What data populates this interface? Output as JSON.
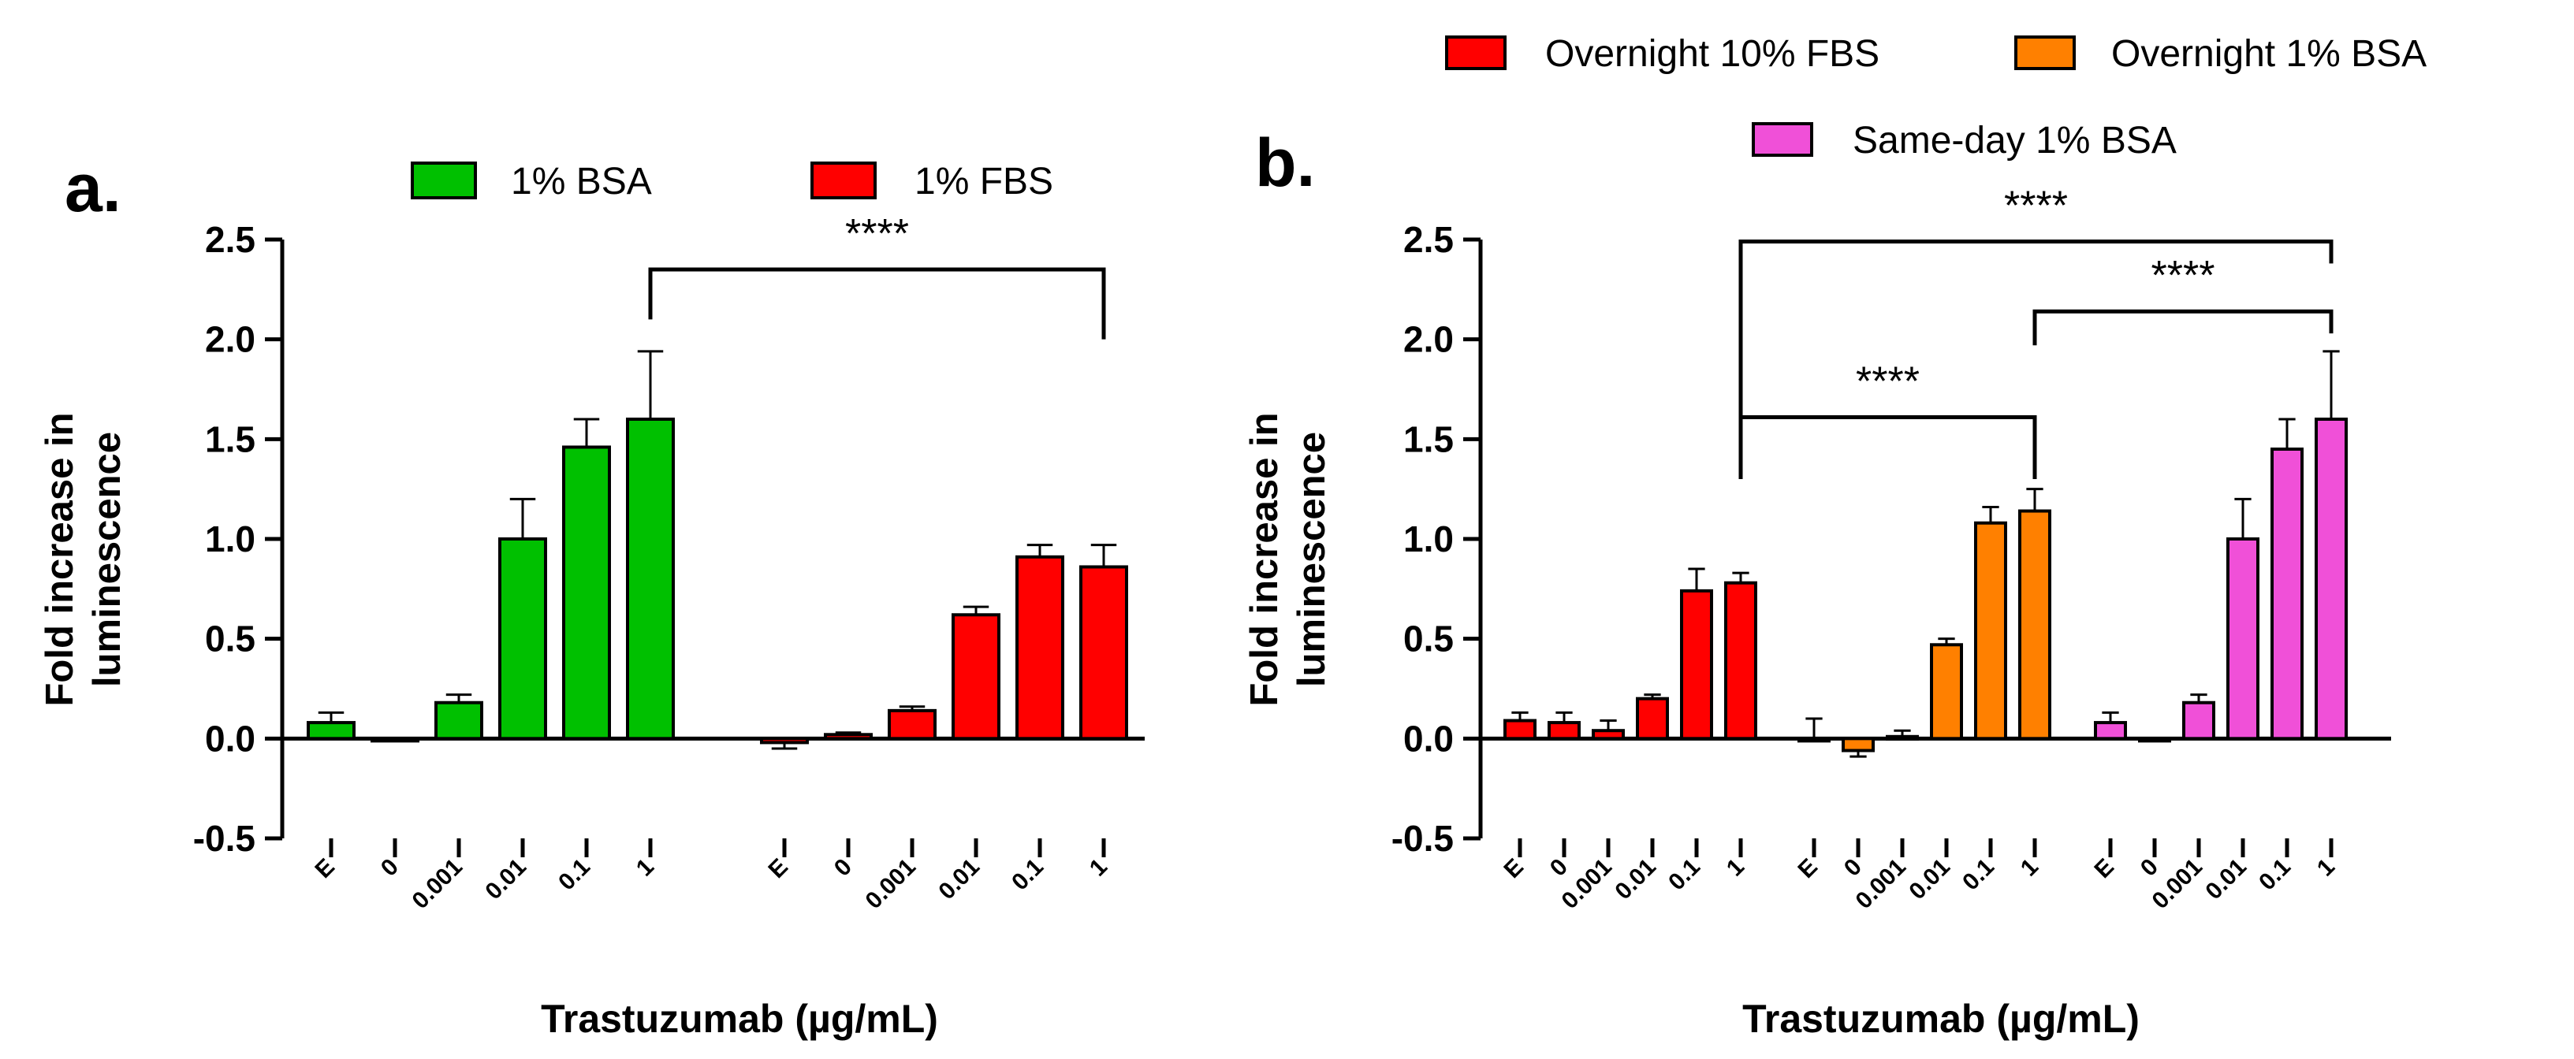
{
  "chart_data": [
    {
      "panel": "a.",
      "type": "bar",
      "ylabel": [
        "Fold increase in",
        "luminescence"
      ],
      "xlabel": "Trastuzumab (µg/mL)",
      "ylim": [
        -0.5,
        2.5
      ],
      "yticks": [
        "2.5",
        "2.0",
        "1.5",
        "1.0",
        "0.5",
        "0.0",
        "-0.5"
      ],
      "ytick_values": [
        2.5,
        2.0,
        1.5,
        1.0,
        0.5,
        0.0,
        -0.5
      ],
      "categories": [
        "E",
        "0",
        "0.001",
        "0.01",
        "0.1",
        "1"
      ],
      "series": [
        {
          "name": "1% BSA",
          "color": "#00c000",
          "values": [
            0.08,
            -0.01,
            0.18,
            1.0,
            1.46,
            1.6
          ],
          "errors": [
            0.05,
            0.0,
            0.04,
            0.2,
            0.14,
            0.34
          ]
        },
        {
          "name": "1% FBS",
          "color": "#ff0000",
          "values": [
            -0.02,
            0.02,
            0.14,
            0.62,
            0.91,
            0.86
          ],
          "errors": [
            0.03,
            0.01,
            0.02,
            0.04,
            0.06,
            0.11
          ]
        }
      ],
      "significance": [
        {
          "label": "****",
          "from": "1% BSA / 1",
          "to": "1% FBS / 1"
        }
      ]
    },
    {
      "panel": "b.",
      "type": "bar",
      "ylabel": [
        "Fold increase in",
        "luminescence"
      ],
      "xlabel": "Trastuzumab (µg/mL)",
      "ylim": [
        -0.5,
        2.5
      ],
      "yticks": [
        "2.5",
        "2.0",
        "1.5",
        "1.0",
        "0.5",
        "0.0",
        "-0.5"
      ],
      "ytick_values": [
        2.5,
        2.0,
        1.5,
        1.0,
        0.5,
        0.0,
        -0.5
      ],
      "categories": [
        "E",
        "0",
        "0.001",
        "0.01",
        "0.1",
        "1"
      ],
      "series": [
        {
          "name": "Overnight 10% FBS",
          "color": "#ff0000",
          "values": [
            0.09,
            0.08,
            0.04,
            0.2,
            0.74,
            0.78
          ],
          "errors": [
            0.04,
            0.05,
            0.05,
            0.02,
            0.11,
            0.05
          ]
        },
        {
          "name": "Overnight 1% BSA",
          "color": "#ff8000",
          "values": [
            0.0,
            -0.06,
            0.01,
            0.47,
            1.08,
            1.14
          ],
          "errors": [
            0.1,
            0.03,
            0.03,
            0.03,
            0.08,
            0.11
          ]
        },
        {
          "name": "Same-day 1% BSA",
          "color": "#f050d8",
          "values": [
            0.08,
            -0.01,
            0.18,
            1.0,
            1.45,
            1.6
          ],
          "errors": [
            0.05,
            0.0,
            0.04,
            0.2,
            0.15,
            0.34
          ]
        }
      ],
      "significance": [
        {
          "label": "****",
          "from": "Overnight 10% FBS / 1",
          "to": "Same-day 1% BSA / 1"
        },
        {
          "label": "****",
          "from": "Overnight 1% BSA / 1",
          "to": "Same-day 1% BSA / 1"
        },
        {
          "label": "****",
          "from": "Overnight 10% FBS / 1",
          "to": "Overnight 1% BSA / 1"
        }
      ]
    }
  ]
}
